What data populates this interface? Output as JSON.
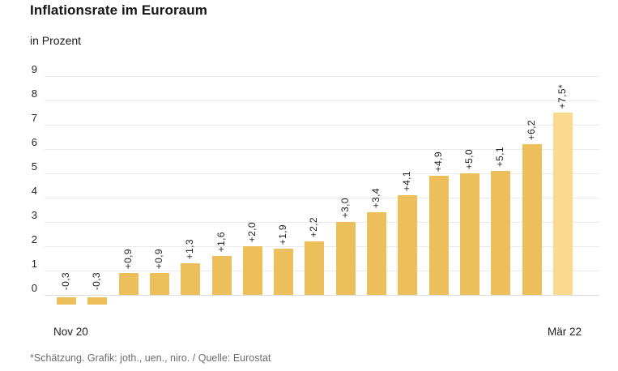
{
  "header": {
    "title": "Inflationsrate im Euroraum",
    "subtitle": "in Prozent"
  },
  "footer": {
    "note": "*Schätzung. Grafik: joth., uen., niro. / Quelle: Eurostat"
  },
  "chart_data": {
    "type": "bar",
    "title": "Inflationsrate im Euroraum",
    "subtitle": "in Prozent",
    "ylabel": "Prozent",
    "xlabel": "",
    "ylim": [
      -0.75,
      9
    ],
    "grid": true,
    "y_axis": {
      "ticks": [
        0,
        1,
        2,
        3,
        4,
        5,
        6,
        7,
        8,
        9
      ]
    },
    "x_axis": {
      "first_label": "Nov 20",
      "last_label": "Mär 22"
    },
    "values": [
      -0.3,
      -0.3,
      0.9,
      0.9,
      1.3,
      1.6,
      2.0,
      1.9,
      2.2,
      3.0,
      3.4,
      4.1,
      4.9,
      5.0,
      5.1,
      6.2,
      7.5
    ],
    "labels": [
      "-0,3",
      "-0,3",
      "+0,9",
      "+0,9",
      "+1,3",
      "+1,6",
      "+2,0",
      "+1,9",
      "+2,2",
      "+3,0",
      "+3,4",
      "+4,1",
      "+4,9",
      "+5,0",
      "+5,1",
      "+6,2",
      "+7,5*"
    ],
    "estimate_index": 16,
    "estimate_marker": "*",
    "colors": {
      "bar": "#ecbf5a",
      "bar_estimate": "#fbd98e",
      "gridline": "#e9e9e9",
      "zero_line": "#d9d9d9",
      "value_label": "#1d1d1d",
      "source_text": "#6d6d6d"
    }
  }
}
